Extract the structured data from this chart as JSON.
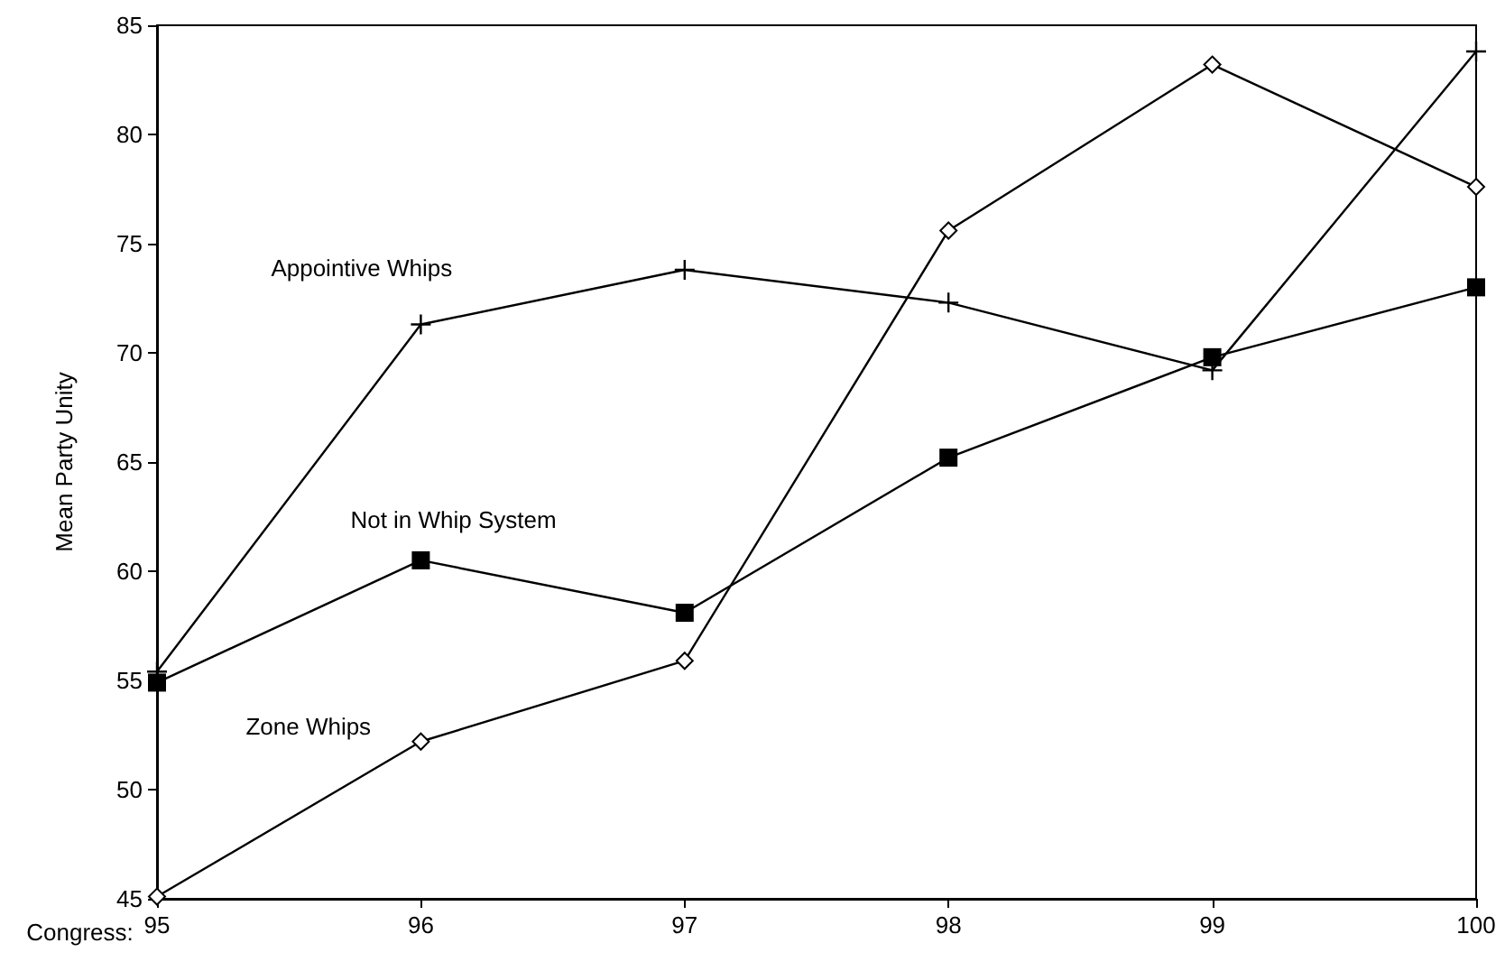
{
  "chart_data": {
    "type": "line",
    "xlabel": "Congress:",
    "ylabel": "Mean Party Unity",
    "x": [
      95,
      96,
      97,
      98,
      99,
      100
    ],
    "xlim": [
      95,
      100
    ],
    "xticks": [
      95,
      96,
      97,
      98,
      99,
      100
    ],
    "ylim": [
      45,
      85
    ],
    "yticks": [
      45,
      50,
      55,
      60,
      65,
      70,
      75,
      80,
      85
    ],
    "grid": false,
    "legend": false,
    "line_style": "solid",
    "series": [
      {
        "name": "Appointive Whips",
        "color": "#000000",
        "marker": "cross",
        "values": [
          55.4,
          71.3,
          73.8,
          72.3,
          69.2,
          83.8
        ]
      },
      {
        "name": "Not in Whip System",
        "color": "#000000",
        "marker": "square",
        "values": [
          54.9,
          60.5,
          58.1,
          65.2,
          69.8,
          73.0
        ]
      },
      {
        "name": "Zone Whips",
        "color": "#000000",
        "marker": "diamond",
        "values": [
          45.1,
          52.2,
          55.9,
          75.6,
          83.2,
          77.6
        ]
      }
    ]
  }
}
